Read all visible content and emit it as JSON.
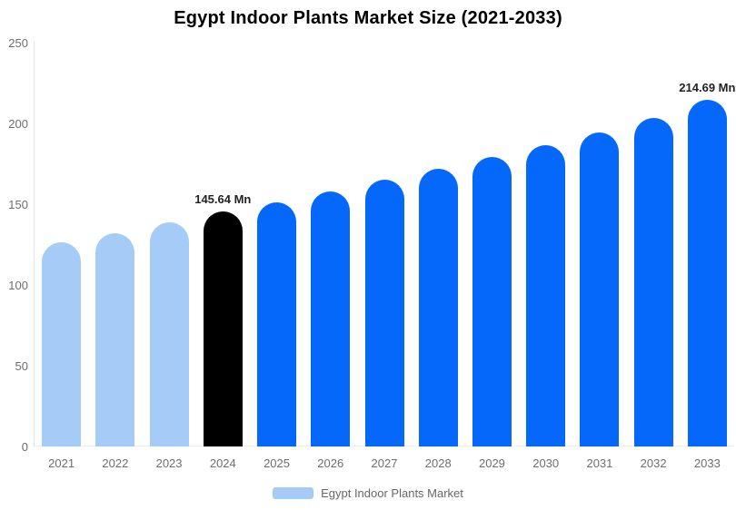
{
  "chart_data": {
    "type": "bar",
    "title": "Egypt Indoor Plants Market Size (2021-2033)",
    "categories": [
      "2021",
      "2022",
      "2023",
      "2024",
      "2025",
      "2026",
      "2027",
      "2028",
      "2029",
      "2030",
      "2031",
      "2032",
      "2033"
    ],
    "series": [
      {
        "name": "Egypt Indoor Plants Market",
        "values": [
          126.2,
          132.3,
          138.6,
          145.64,
          151.2,
          157.6,
          165.1,
          171.8,
          179.1,
          186.3,
          194.2,
          203.6,
          214.69
        ]
      }
    ],
    "unit": "Mn",
    "annotations": [
      {
        "category": "2024",
        "label": "145.64 Mn"
      },
      {
        "category": "2033",
        "label": "214.69 Mn"
      }
    ],
    "xlabel": "",
    "ylabel": "",
    "ylim": [
      0,
      250
    ],
    "yticks": [
      0,
      50,
      100,
      150,
      200,
      250
    ],
    "grid": false,
    "legend_position": "bottom",
    "colors": {
      "historical": "#A4CCF7",
      "highlight": "#000000",
      "forecast": "#0668FA"
    },
    "bar_color_keys": [
      "historical",
      "historical",
      "historical",
      "highlight",
      "forecast",
      "forecast",
      "forecast",
      "forecast",
      "forecast",
      "forecast",
      "forecast",
      "forecast",
      "forecast"
    ]
  },
  "legend": {
    "items": [
      {
        "label": "Egypt Indoor Plants Market",
        "color": "#A4CCF7"
      }
    ]
  }
}
